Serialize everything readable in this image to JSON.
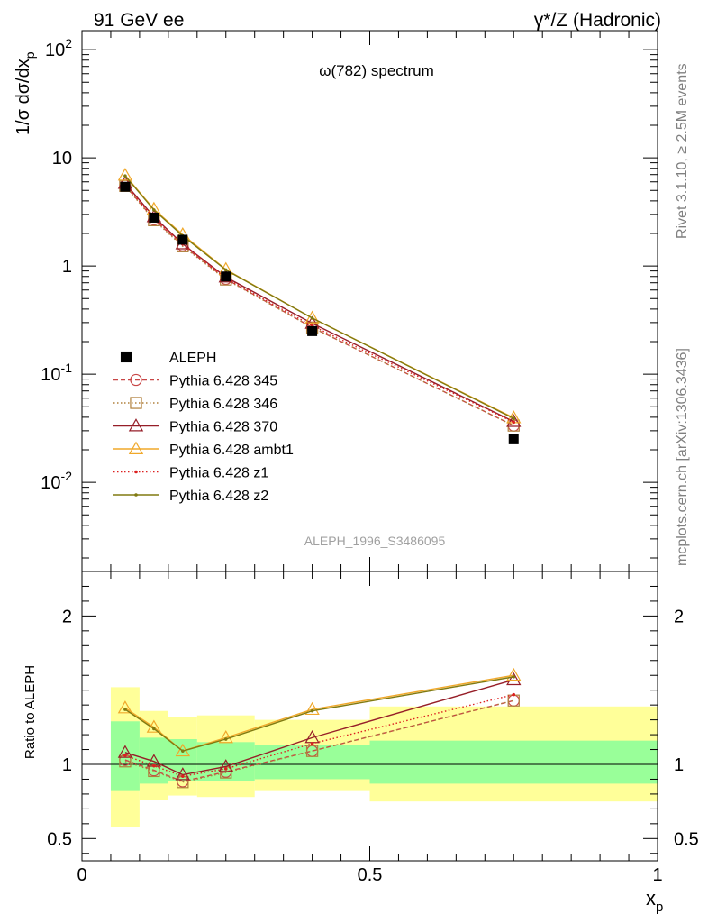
{
  "header": {
    "left": "91 GeV ee",
    "right": "γ*/Z (Hadronic)"
  },
  "side_labels": {
    "rivet": "Rivet 3.1.10, ≥ 2.5M events",
    "mcplots": "mcplots.cern.ch [arXiv:1306.3436]"
  },
  "chart_data": [
    {
      "type": "line",
      "title": "ω(782) spectrum",
      "ylabel": "1/σ dσ/dx_p",
      "yscale": "log",
      "xlim": [
        0,
        1
      ],
      "ylim": [
        0.0015,
        150
      ],
      "y_tick_labels": [
        "10^2",
        "10",
        "1",
        "10^-1",
        "10^-2"
      ],
      "watermark": "ALEPH_1996_S3486095",
      "legend_position": "lower-left",
      "x": [
        0.075,
        0.125,
        0.175,
        0.25,
        0.4,
        0.75
      ],
      "data": {
        "name": "ALEPH",
        "values": [
          5.4,
          2.8,
          1.75,
          0.8,
          0.25,
          0.025
        ],
        "bin_edges": [
          0.05,
          0.1,
          0.15,
          0.2,
          0.3,
          0.5,
          1.0
        ]
      },
      "series": [
        {
          "name": "Pythia 6.428 345",
          "color": "#c84646",
          "marker": "circle",
          "line": "dashed",
          "values": [
            5.55,
            2.7,
            1.55,
            0.76,
            0.27,
            0.0335
          ]
        },
        {
          "name": "Pythia 6.428 346",
          "color": "#b0803c",
          "marker": "square",
          "line": "dotted",
          "values": [
            5.5,
            2.65,
            1.52,
            0.75,
            0.27,
            0.0335
          ]
        },
        {
          "name": "Pythia 6.428 370",
          "color": "#961e28",
          "marker": "triangle",
          "line": "solid",
          "values": [
            5.8,
            2.85,
            1.6,
            0.79,
            0.295,
            0.0365
          ]
        },
        {
          "name": "Pythia 6.428 ambt1",
          "color": "#f0a82a",
          "marker": "triangle",
          "line": "solid",
          "values": [
            6.9,
            3.35,
            1.95,
            0.93,
            0.33,
            0.0395
          ]
        },
        {
          "name": "Pythia 6.428 z1",
          "color": "#dc2020",
          "marker": "dot",
          "line": "dotted",
          "values": [
            5.7,
            2.75,
            1.6,
            0.77,
            0.28,
            0.036
          ]
        },
        {
          "name": "Pythia 6.428 z2",
          "color": "#807a10",
          "marker": "dot",
          "line": "solid",
          "values": [
            6.8,
            3.3,
            1.9,
            0.92,
            0.33,
            0.039
          ]
        }
      ]
    },
    {
      "type": "line",
      "ylabel": "Ratio to ALEPH",
      "xlabel": "x_p",
      "xlim": [
        0,
        1
      ],
      "ylim": [
        0.35,
        2.3
      ],
      "y_tick_labels": [
        "0.5",
        "1",
        "2"
      ],
      "x_tick_labels": [
        "0",
        "0.5",
        "1"
      ],
      "x": [
        0.075,
        0.125,
        0.175,
        0.25,
        0.4,
        0.75
      ],
      "bands": {
        "bin_edges": [
          0.05,
          0.1,
          0.15,
          0.2,
          0.3,
          0.5,
          1.0
        ],
        "green": [
          [
            0.82,
            1.29
          ],
          [
            0.87,
            1.18
          ],
          [
            0.89,
            1.17
          ],
          [
            0.89,
            1.15
          ],
          [
            0.9,
            1.13
          ],
          [
            0.87,
            1.16
          ]
        ],
        "yellow": [
          [
            0.58,
            1.52
          ],
          [
            0.76,
            1.36
          ],
          [
            0.79,
            1.32
          ],
          [
            0.78,
            1.33
          ],
          [
            0.82,
            1.3
          ],
          [
            0.75,
            1.39
          ]
        ]
      },
      "series": [
        {
          "name": "Pythia 6.428 345",
          "values": [
            1.03,
            0.96,
            0.885,
            0.95,
            1.09,
            1.43
          ]
        },
        {
          "name": "Pythia 6.428 346",
          "values": [
            1.02,
            0.955,
            0.88,
            0.945,
            1.09,
            1.43
          ]
        },
        {
          "name": "Pythia 6.428 370",
          "values": [
            1.08,
            1.02,
            0.93,
            0.985,
            1.18,
            1.57
          ]
        },
        {
          "name": "Pythia 6.428 ambt1",
          "values": [
            1.38,
            1.25,
            1.09,
            1.18,
            1.37,
            1.6
          ]
        },
        {
          "name": "Pythia 6.428 z1",
          "values": [
            1.06,
            0.99,
            0.92,
            0.97,
            1.14,
            1.47
          ]
        },
        {
          "name": "Pythia 6.428 z2",
          "values": [
            1.37,
            1.24,
            1.09,
            1.17,
            1.36,
            1.59
          ]
        }
      ]
    }
  ]
}
